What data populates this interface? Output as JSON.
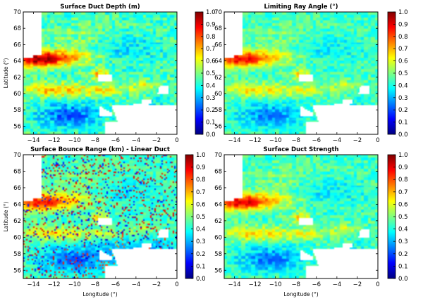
{
  "chart_data": [
    {
      "type": "heatmap",
      "title": "Surface Duct Depth (m)",
      "xlabel": "",
      "ylabel": "Latitude (°)",
      "xlim": [
        -15,
        0
      ],
      "ylim": [
        55,
        70
      ],
      "xticks": [
        "−14",
        "−12",
        "−10",
        "−8",
        "−6",
        "−4",
        "−2",
        "0"
      ],
      "yticks": [
        "56",
        "58",
        "60",
        "62",
        "64",
        "66",
        "68",
        "70"
      ],
      "colorbar": {
        "range": [
          0.0,
          1.0
        ],
        "ticks": [
          "0.0",
          "0.1",
          "0.2",
          "0.3",
          "0.4",
          "0.5",
          "0.6",
          "0.7",
          "0.8",
          "0.9",
          "1.0"
        ]
      },
      "intensity": 1.15,
      "speckle": false
    },
    {
      "type": "heatmap",
      "title": "Limiting Ray Angle (°)",
      "xlabel": "",
      "ylabel": "",
      "xlim": [
        -15,
        0
      ],
      "ylim": [
        55,
        70
      ],
      "xticks": [
        "−14",
        "−12",
        "−10",
        "−8",
        "−6",
        "−4",
        "−2",
        "0"
      ],
      "yticks": [
        "56",
        "58",
        "60",
        "62",
        "64",
        "66",
        "68",
        "70"
      ],
      "colorbar": {
        "range": [
          0.0,
          1.0
        ],
        "ticks": [
          "0.0",
          "0.1",
          "0.2",
          "0.3",
          "0.4",
          "0.5",
          "0.6",
          "0.7",
          "0.8",
          "0.9",
          "1.0"
        ]
      },
      "intensity": 0.95,
      "speckle": false
    },
    {
      "type": "heatmap",
      "title": "Surface Bounce Range (km) - Linear Duct",
      "xlabel": "Longitude (°)",
      "ylabel": "Latitude (°)",
      "xlim": [
        -15,
        0
      ],
      "ylim": [
        55,
        70
      ],
      "xticks": [
        "−14",
        "−12",
        "−10",
        "−8",
        "−6",
        "−4",
        "−2",
        "0"
      ],
      "yticks": [
        "56",
        "58",
        "60",
        "62",
        "64",
        "66",
        "68",
        "70"
      ],
      "colorbar": {
        "range": [
          0.0,
          1.0
        ],
        "ticks": [
          "0.0",
          "0.1",
          "0.2",
          "0.3",
          "0.4",
          "0.5",
          "0.6",
          "0.7",
          "0.8",
          "0.9",
          "1.0"
        ]
      },
      "intensity": 0.9,
      "speckle": true
    },
    {
      "type": "heatmap",
      "title": "Surface Duct Strength",
      "xlabel": "Longitude (°)",
      "ylabel": "",
      "xlim": [
        -15,
        0
      ],
      "ylim": [
        55,
        70
      ],
      "xticks": [
        "−14",
        "−12",
        "−10",
        "−8",
        "−6",
        "−4",
        "−2",
        "0"
      ],
      "yticks": [
        "56",
        "58",
        "60",
        "62",
        "64",
        "66",
        "68",
        "70"
      ],
      "colorbar": {
        "range": [
          0.0,
          1.0
        ],
        "ticks": [
          "0.0",
          "0.1",
          "0.2",
          "0.3",
          "0.4",
          "0.5",
          "0.6",
          "0.7",
          "0.8",
          "0.9",
          "1.0"
        ]
      },
      "intensity": 1.0,
      "speckle": false
    }
  ],
  "colormap": [
    "#00007f",
    "#0000ff",
    "#007fff",
    "#00ffff",
    "#7fff7f",
    "#ffff00",
    "#ff7f00",
    "#ff0000",
    "#7f0000"
  ],
  "land_color": "#ffffff"
}
